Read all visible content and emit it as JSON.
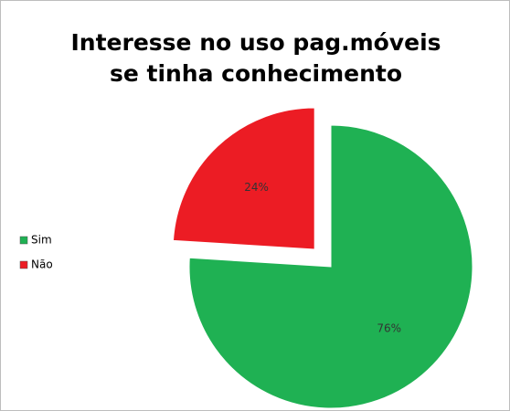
{
  "chart_data": {
    "type": "pie",
    "title": "Interesse no uso pag.móveis se tinha conhecimento",
    "categories": [
      "Sim",
      "Não"
    ],
    "values": [
      76,
      24
    ],
    "value_labels": [
      "76%",
      "24%"
    ],
    "colors": [
      "#1fb153",
      "#ec1c24"
    ],
    "legend": "left"
  }
}
